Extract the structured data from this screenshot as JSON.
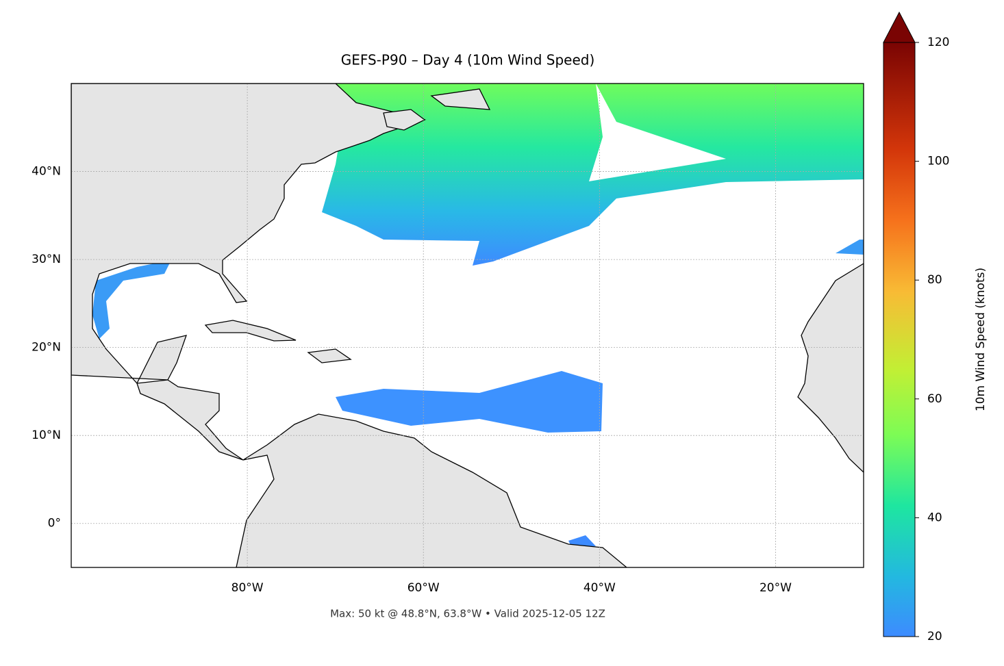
{
  "chart_data": {
    "type": "map",
    "title": "GEFS-P90 – Day 4 (10m Wind Speed)",
    "footnote": "Max: 50 kt @ 48.8°N, 63.8°W • Valid 2025-12-05 12Z",
    "xlim": [
      -100,
      -10
    ],
    "ylim": [
      -5,
      50
    ],
    "xticks": [
      {
        "value": -80,
        "label": "80°W"
      },
      {
        "value": -60,
        "label": "60°W"
      },
      {
        "value": -40,
        "label": "40°W"
      },
      {
        "value": -20,
        "label": "20°W"
      }
    ],
    "yticks": [
      {
        "value": 0,
        "label": "0°"
      },
      {
        "value": 10,
        "label": "10°N"
      },
      {
        "value": 20,
        "label": "20°N"
      },
      {
        "value": 30,
        "label": "30°N"
      },
      {
        "value": 40,
        "label": "40°N"
      }
    ],
    "grid": true,
    "colorbar": {
      "label": "10m Wind Speed (knots)",
      "lim": [
        20,
        120
      ],
      "ticks": [
        20,
        40,
        60,
        80,
        100,
        120
      ]
    }
  }
}
